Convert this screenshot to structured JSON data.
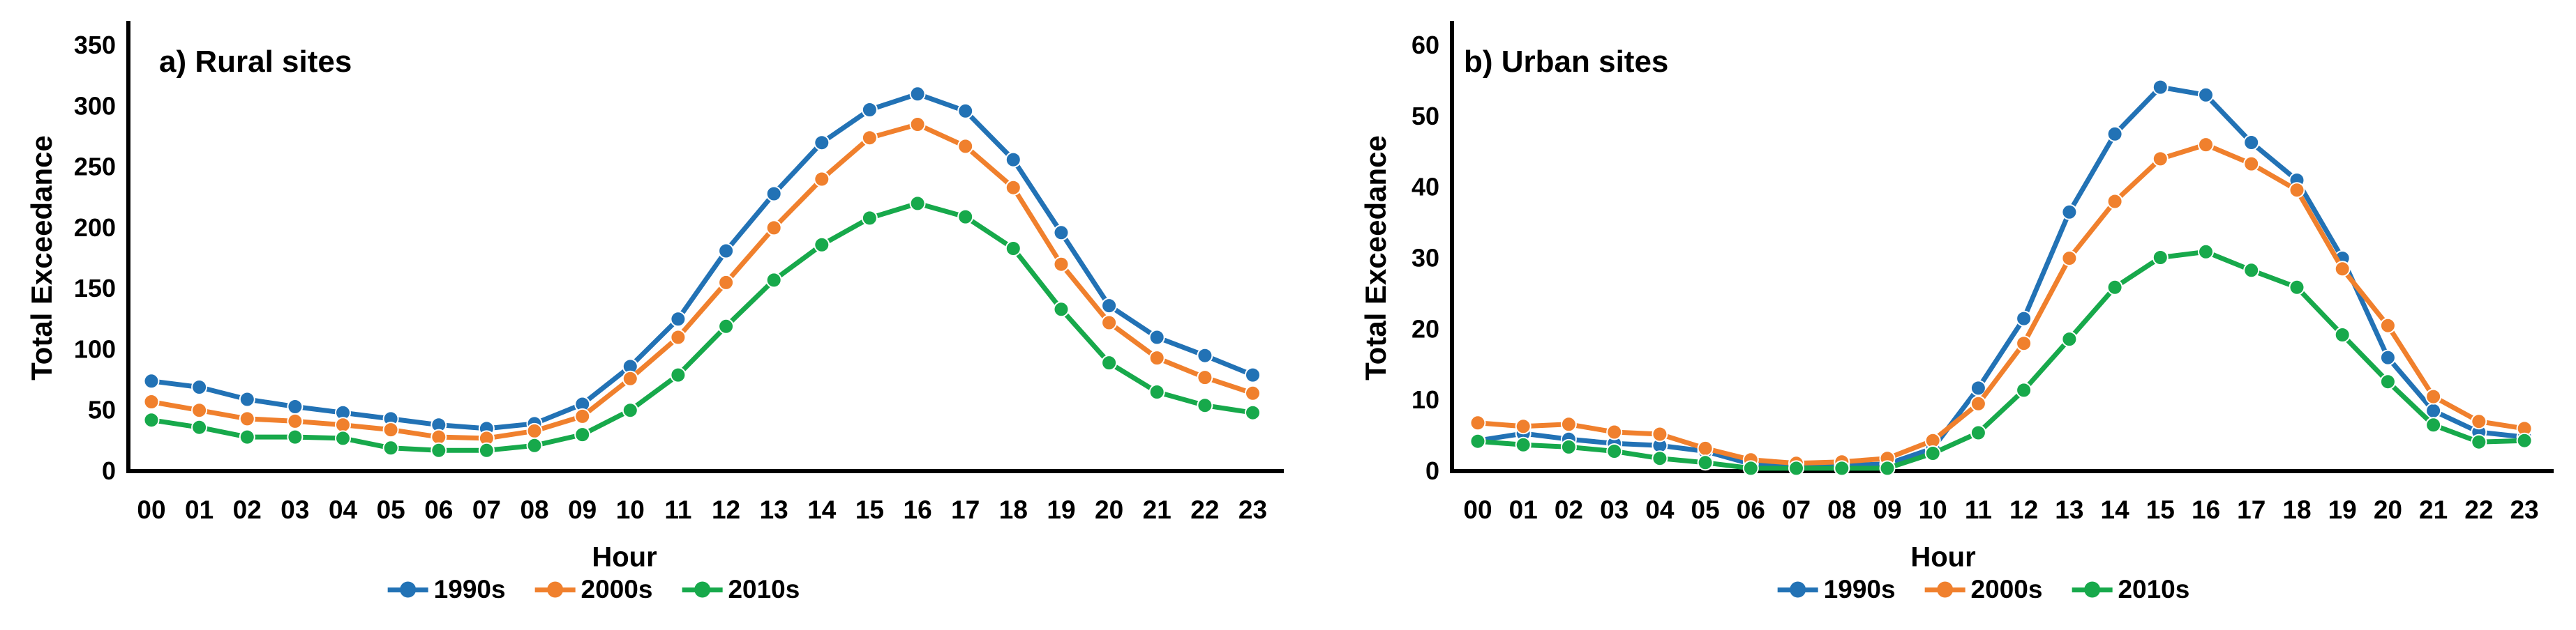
{
  "figure": {
    "background": "#ffffff",
    "text_color": "#000000"
  },
  "chart_data": [
    {
      "type": "line",
      "title": "a) Rural sites",
      "xlabel": "Hour",
      "ylabel": "Total Exceedance",
      "categories": [
        "00",
        "01",
        "02",
        "03",
        "04",
        "05",
        "06",
        "07",
        "08",
        "09",
        "10",
        "11",
        "12",
        "13",
        "14",
        "15",
        "16",
        "17",
        "18",
        "19",
        "20",
        "21",
        "22",
        "23"
      ],
      "ylim": [
        0,
        350
      ],
      "ytick_step": 50,
      "yticks": [
        0,
        50,
        100,
        150,
        200,
        250,
        300,
        350
      ],
      "grid": false,
      "legend_position": "bottom-center",
      "series": [
        {
          "name": "1990s",
          "color": "#2272B5",
          "values": [
            74,
            69,
            59,
            53,
            48,
            43,
            38,
            35,
            39,
            55,
            86,
            125,
            181,
            228,
            270,
            297,
            310,
            296,
            256,
            196,
            136,
            110,
            95,
            79
          ]
        },
        {
          "name": "2000s",
          "color": "#F0802D",
          "values": [
            57,
            50,
            43,
            41,
            38,
            34,
            28,
            27,
            33,
            45,
            76,
            110,
            155,
            200,
            240,
            274,
            285,
            267,
            233,
            170,
            122,
            93,
            77,
            64
          ]
        },
        {
          "name": "2010s",
          "color": "#17A94B",
          "values": [
            42,
            36,
            28,
            28,
            27,
            19,
            17,
            17,
            21,
            30,
            50,
            79,
            119,
            157,
            186,
            208,
            220,
            209,
            183,
            133,
            89,
            65,
            54,
            48
          ]
        }
      ]
    },
    {
      "type": "line",
      "title": "b) Urban sites",
      "xlabel": "Hour",
      "ylabel": "Total Exceedance",
      "categories": [
        "00",
        "01",
        "02",
        "03",
        "04",
        "05",
        "06",
        "07",
        "08",
        "09",
        "10",
        "11",
        "12",
        "13",
        "14",
        "15",
        "16",
        "17",
        "18",
        "19",
        "20",
        "21",
        "22",
        "23"
      ],
      "ylim": [
        0,
        60
      ],
      "ytick_step": 10,
      "yticks": [
        0,
        10,
        20,
        30,
        40,
        50,
        60
      ],
      "grid": false,
      "legend_position": "bottom-center",
      "series": [
        {
          "name": "1990s",
          "color": "#2272B5",
          "values": [
            4.3,
            5.3,
            4.5,
            3.9,
            3.6,
            2.8,
            1.0,
            0.6,
            0.8,
            1.0,
            3.2,
            11.7,
            21.5,
            36.5,
            47.5,
            54.1,
            53.0,
            46.3,
            41.0,
            30.0,
            16.0,
            8.5,
            5.5,
            4.8
          ]
        },
        {
          "name": "2000s",
          "color": "#F0802D",
          "values": [
            6.8,
            6.3,
            6.6,
            5.5,
            5.2,
            3.2,
            1.6,
            1.1,
            1.3,
            1.8,
            4.3,
            9.5,
            18.0,
            30.0,
            38.0,
            44.0,
            46.0,
            43.3,
            39.6,
            28.5,
            20.5,
            10.5,
            7.0,
            6.0
          ]
        },
        {
          "name": "2010s",
          "color": "#17A94B",
          "values": [
            4.2,
            3.7,
            3.4,
            2.8,
            1.8,
            1.2,
            0.4,
            0.4,
            0.4,
            0.4,
            2.5,
            5.4,
            11.4,
            18.6,
            25.9,
            30.1,
            30.9,
            28.3,
            25.9,
            19.2,
            12.6,
            6.5,
            4.1,
            4.3
          ]
        }
      ]
    }
  ]
}
